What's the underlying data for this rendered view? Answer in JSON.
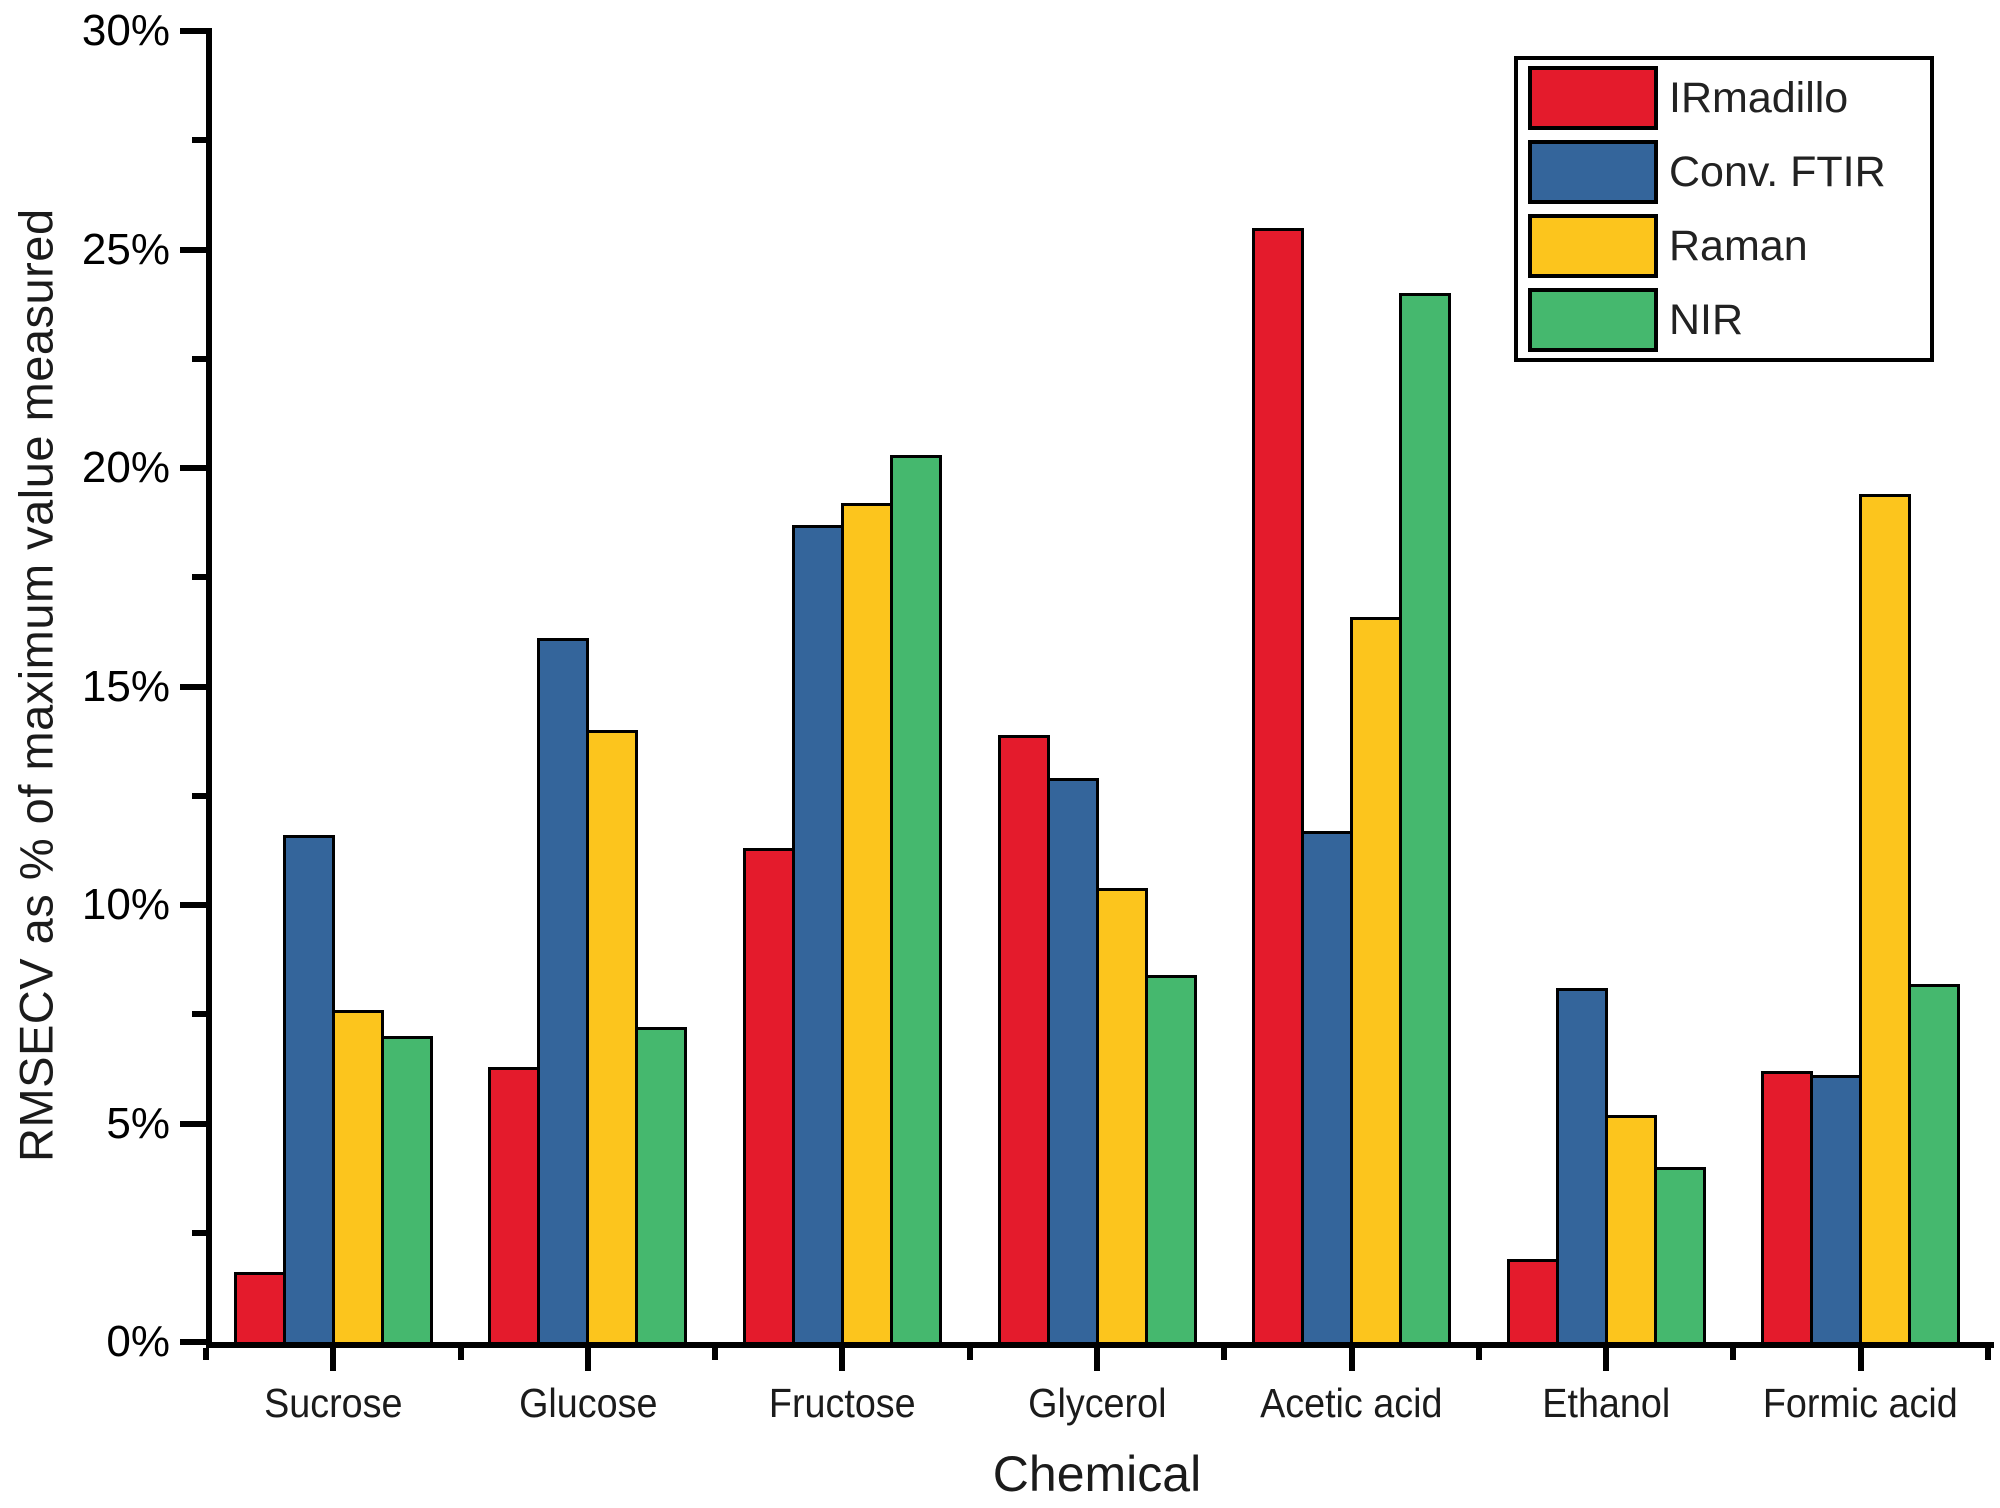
{
  "chart_data": {
    "type": "bar",
    "title": "",
    "xlabel": "Chemical",
    "ylabel": "RMSECV as % of maximum value measured",
    "categories": [
      "Sucrose",
      "Glucose",
      "Fructose",
      "Glycerol",
      "Acetic acid",
      "Ethanol",
      "Formic acid"
    ],
    "series": [
      {
        "name": "IRmadillo",
        "color": "#E41B2C",
        "values": [
          1.6,
          6.3,
          11.3,
          13.9,
          25.5,
          1.9,
          6.2
        ]
      },
      {
        "name": "Conv. FTIR",
        "color": "#34659B",
        "values": [
          11.6,
          16.1,
          18.7,
          12.9,
          11.7,
          8.1,
          6.1
        ]
      },
      {
        "name": "Raman",
        "color": "#FCC51D",
        "values": [
          7.6,
          14.0,
          19.2,
          10.4,
          16.6,
          5.2,
          19.4
        ]
      },
      {
        "name": "NIR",
        "color": "#45B86E",
        "values": [
          7.0,
          7.2,
          20.3,
          8.4,
          24.0,
          4.0,
          8.2
        ]
      }
    ],
    "ylim": [
      0,
      30
    ],
    "ytick_step": 5,
    "yminor_step": 2.5,
    "ytick_labels": [
      "0%",
      "5%",
      "10%",
      "15%",
      "20%",
      "25%",
      "30%"
    ],
    "grid": false,
    "legend_position": "top-right",
    "axis_color": "#000000"
  }
}
